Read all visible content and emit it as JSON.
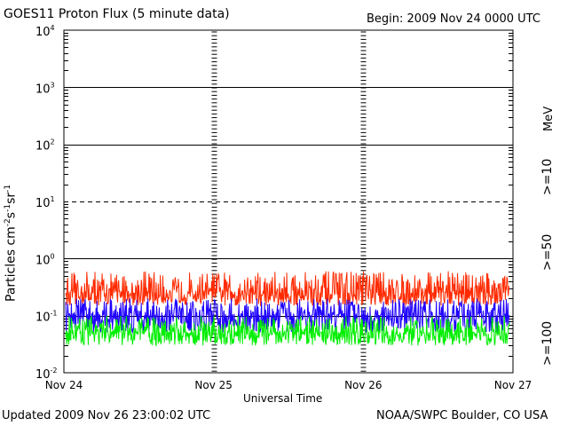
{
  "header": {
    "title": "GOES11 Proton Flux (5 minute data)",
    "begin": "Begin: 2009 Nov 24 0000 UTC"
  },
  "footer": {
    "updated": "Updated 2009 Nov 26 23:00:02 UTC",
    "credit": "NOAA/SWPC Boulder, CO USA"
  },
  "colors": {
    "ge10": "#ff2a00",
    "ge50": "#1e00ff",
    "ge100": "#00ee00"
  },
  "chart_data": {
    "type": "line",
    "title": "GOES11 Proton Flux (5 minute data)",
    "xlabel": "Universal Time",
    "ylabel": "Particles cm-2s-1sr-1",
    "yscale": "log",
    "ylim": [
      0.01,
      10000
    ],
    "x_ticks": [
      "Nov 24",
      "Nov 25",
      "Nov 26",
      "Nov 27"
    ],
    "y_ticks": [
      {
        "base": "10",
        "exp": "4"
      },
      {
        "base": "10",
        "exp": "3"
      },
      {
        "base": "10",
        "exp": "2"
      },
      {
        "base": "10",
        "exp": "1"
      },
      {
        "base": "10",
        "exp": "0"
      },
      {
        "base": "10",
        "exp": "-1"
      },
      {
        "base": "10",
        "exp": "-2"
      }
    ],
    "units_label": "MeV",
    "grid": "horizontal lines at each decade",
    "series": [
      {
        "name": ">=10",
        "color": "#ff2a00",
        "x": [
          "2009-11-24",
          "2009-11-25",
          "2009-11-26",
          "2009-11-27"
        ],
        "typical": 0.25,
        "range": [
          0.15,
          0.6
        ]
      },
      {
        "name": ">=50",
        "color": "#1e00ff",
        "x": [
          "2009-11-24",
          "2009-11-25",
          "2009-11-26",
          "2009-11-27"
        ],
        "typical": 0.1,
        "range": [
          0.05,
          0.2
        ]
      },
      {
        "name": ">=100",
        "color": "#00ee00",
        "x": [
          "2009-11-24",
          "2009-11-25",
          "2009-11-26",
          "2009-11-27"
        ],
        "typical": 0.05,
        "range": [
          0.03,
          0.1
        ]
      }
    ]
  }
}
